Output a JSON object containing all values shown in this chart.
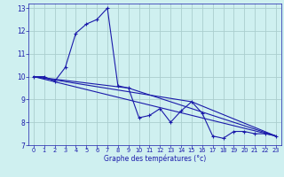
{
  "xlabel": "Graphe des températures (°c)",
  "bg_color": "#cff0f0",
  "grid_color": "#aacece",
  "line_color": "#1a1aaa",
  "axis_color": "#1a1aaa",
  "xlim": [
    -0.5,
    23.5
  ],
  "ylim": [
    7,
    13.2
  ],
  "xticks": [
    0,
    1,
    2,
    3,
    4,
    5,
    6,
    7,
    8,
    9,
    10,
    11,
    12,
    13,
    14,
    15,
    16,
    17,
    18,
    19,
    20,
    21,
    22,
    23
  ],
  "yticks": [
    7,
    8,
    9,
    10,
    11,
    12,
    13
  ],
  "series": [
    [
      0,
      10.0
    ],
    [
      1,
      10.0
    ],
    [
      2,
      9.8
    ],
    [
      3,
      10.4
    ],
    [
      4,
      11.9
    ],
    [
      5,
      12.3
    ],
    [
      6,
      12.5
    ],
    [
      7,
      13.0
    ],
    [
      8,
      9.6
    ],
    [
      9,
      9.5
    ],
    [
      10,
      8.2
    ],
    [
      11,
      8.3
    ],
    [
      12,
      8.6
    ],
    [
      13,
      8.0
    ],
    [
      14,
      8.5
    ],
    [
      15,
      8.9
    ],
    [
      16,
      8.4
    ],
    [
      17,
      7.4
    ],
    [
      18,
      7.3
    ],
    [
      19,
      7.6
    ],
    [
      20,
      7.6
    ],
    [
      21,
      7.5
    ],
    [
      22,
      7.5
    ],
    [
      23,
      7.4
    ]
  ],
  "refline1": [
    [
      0,
      10.0
    ],
    [
      23,
      7.4
    ]
  ],
  "refline2": [
    [
      0,
      10.0
    ],
    [
      9,
      9.5
    ],
    [
      23,
      7.4
    ]
  ],
  "refline3": [
    [
      0,
      10.0
    ],
    [
      15,
      8.9
    ],
    [
      23,
      7.4
    ]
  ]
}
